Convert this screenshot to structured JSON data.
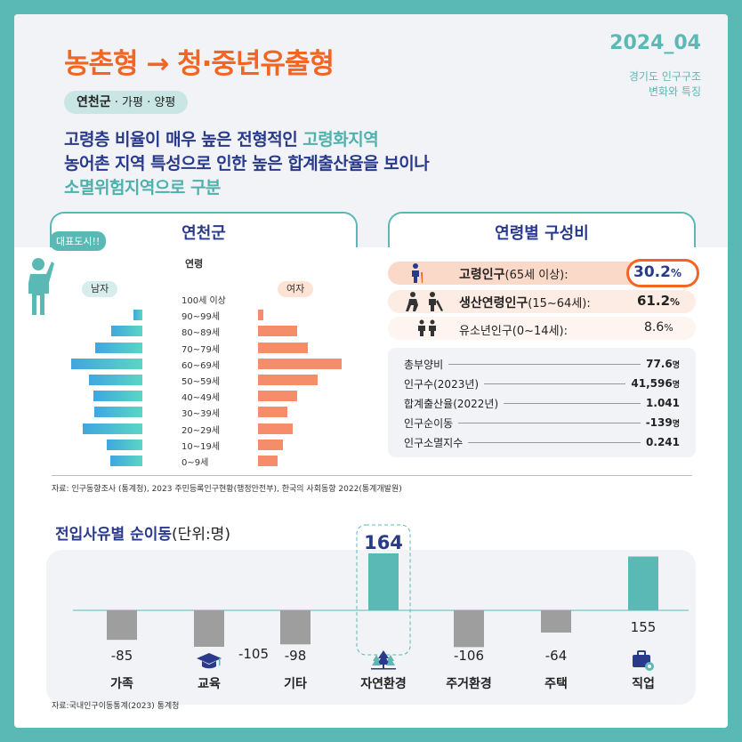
{
  "header": {
    "title": "농촌형 → 청·중년유출형",
    "year": "2024_",
    "issue": "04",
    "publication_line1": "경기도 인구구조",
    "publication_line2": "변화와 특징",
    "region_main": "연천군",
    "region_rest": " · 가평 · 양평",
    "desc_line1_a": "고령층 비율이 매우 높은 전형적인 ",
    "desc_line1_b": "고령화지역",
    "desc_line2": "농어촌 지역 특성으로 인한 높은 합계출산율을 보이나",
    "desc_line3": "소멸위험지역으로 구분"
  },
  "pyramid": {
    "title": "연천군",
    "bubble": "대표도시!!",
    "age_header": "연령",
    "male_label": "남자",
    "female_label": "여자",
    "age_groups": [
      "100세 이상",
      "90~99세",
      "80~89세",
      "70~79세",
      "60~69세",
      "50~59세",
      "40~49세",
      "30~39세",
      "20~29세",
      "10~19세",
      "0~9세"
    ],
    "chart_data": {
      "type": "bar",
      "orientation": "horizontal-pyramid",
      "series": [
        {
          "name": "남자",
          "values": [
            0,
            1,
            3.5,
            5.3,
            8.0,
            6.0,
            5.5,
            5.4,
            6.7,
            4.0,
            3.6
          ]
        },
        {
          "name": "여자",
          "values": [
            0,
            0.5,
            4.0,
            5.0,
            8.5,
            6.0,
            4.0,
            3.0,
            3.5,
            2.5,
            2.0
          ]
        }
      ],
      "categories": [
        "100세 이상",
        "90~99세",
        "80~89세",
        "70~79세",
        "60~69세",
        "50~59세",
        "40~49세",
        "30~39세",
        "20~29세",
        "10~19세",
        "0~9세"
      ]
    }
  },
  "composition": {
    "title": "연령별 구성비",
    "rows": [
      {
        "name_bold": "고령인구",
        "name_rest": "(65세 이상):",
        "value": "30.2",
        "unit": "%"
      },
      {
        "name_bold": "생산연령인구",
        "name_rest": "(15~64세):",
        "value": "61.2",
        "unit": "%"
      },
      {
        "name_bold": "",
        "name_rest": "유소년인구(0~14세):",
        "value": "8.6",
        "unit": "%"
      }
    ]
  },
  "info": [
    {
      "label": "총부양비",
      "value": "77.6",
      "unit": "명"
    },
    {
      "label": "인구수(2023년)",
      "value": "41,596",
      "unit": "명"
    },
    {
      "label": "합계출산율(2022년)",
      "value": "1.041",
      "unit": ""
    },
    {
      "label": "인구순이동",
      "value": "-139",
      "unit": "명"
    },
    {
      "label": "인구소멸지수",
      "value": "0.241",
      "unit": ""
    }
  ],
  "source1": "자료: 인구동향조사 (통계청), 2023 주민등록인구현황(행정안전부), 한국의 사회동향 2022(통계개발원)",
  "migration": {
    "title": "전입사유별 순이동",
    "unit": "(단위:명)",
    "chart_data": {
      "type": "bar",
      "categories": [
        "가족",
        "교육",
        "기타",
        "자연환경",
        "주거환경",
        "주택",
        "직업"
      ],
      "values": [
        -85,
        -105,
        -98,
        164,
        -106,
        -64,
        155
      ],
      "value_labels": [
        "-85",
        "-105",
        "-98",
        "164",
        "-106",
        "-64",
        "155"
      ]
    }
  },
  "source2": "자료:국내인구이동통계(2023) 통계청",
  "colors": {
    "teal": "#5bb9b5",
    "orange": "#f26522",
    "navy": "#2a3a8a",
    "positive_bar": "#5bb9b5",
    "negative_bar": "#9e9e9e",
    "female_bar": "#f58c6a"
  }
}
